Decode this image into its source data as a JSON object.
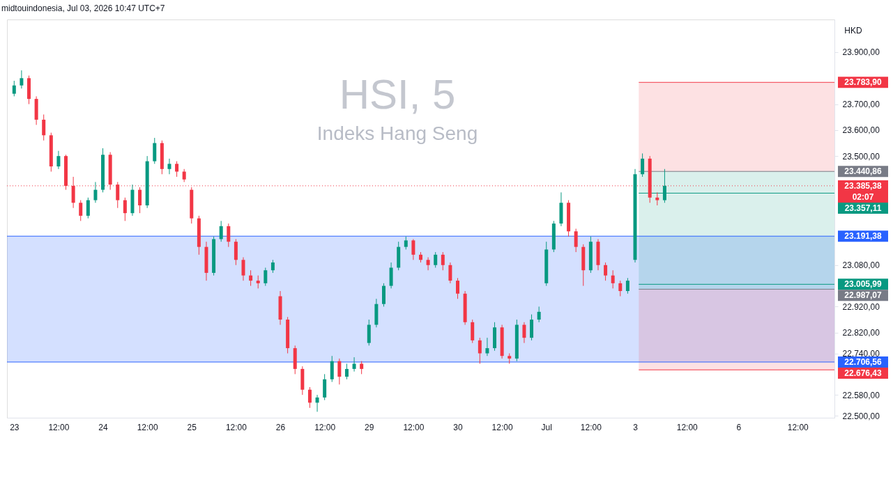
{
  "chart_data": {
    "type": "candlestick",
    "title": "HSI, 5",
    "subtitle": "Indeks Hang Seng",
    "ylabel": "HKD",
    "annotations": [
      "midtouindonesia, Jul 03, 2026 10:47 UTC+7"
    ],
    "categories": [
      "23",
      null,
      null,
      null,
      null,
      null,
      "12:00",
      null,
      null,
      null,
      null,
      null,
      "24",
      null,
      null,
      null,
      null,
      null,
      "12:00",
      null,
      null,
      null,
      null,
      null,
      "25",
      null,
      null,
      null,
      null,
      null,
      "12:00",
      null,
      null,
      null,
      null,
      null,
      "26",
      null,
      null,
      null,
      null,
      null,
      "12:00",
      null,
      null,
      null,
      null,
      null,
      "29",
      null,
      null,
      null,
      null,
      null,
      "12:00",
      null,
      null,
      null,
      null,
      null,
      "30",
      null,
      null,
      null,
      null,
      null,
      "12:00",
      null,
      null,
      null,
      null,
      null,
      "Jul",
      null,
      null,
      null,
      null,
      null,
      "12:00",
      null,
      null,
      null,
      null,
      null,
      "3",
      null,
      null,
      null,
      null,
      null,
      null,
      "12:00",
      null,
      null,
      null,
      null,
      null,
      null,
      "6",
      null,
      null,
      null,
      null,
      null,
      null,
      null,
      "12:00",
      null,
      null,
      null,
      null
    ],
    "ohlc": [
      [
        23740,
        23790,
        23730,
        23772
      ],
      [
        23772,
        23830,
        23760,
        23800
      ],
      [
        23800,
        23810,
        23700,
        23720
      ],
      [
        23720,
        23730,
        23620,
        23640
      ],
      [
        23640,
        23660,
        23560,
        23580
      ],
      [
        23580,
        23590,
        23440,
        23460
      ],
      [
        23460,
        23520,
        23450,
        23500
      ],
      [
        23500,
        23505,
        23370,
        23385
      ],
      [
        23385,
        23420,
        23300,
        23320
      ],
      [
        23320,
        23330,
        23250,
        23270
      ],
      [
        23270,
        23340,
        23260,
        23330
      ],
      [
        23330,
        23400,
        23320,
        23370
      ],
      [
        23370,
        23530,
        23360,
        23505
      ],
      [
        23505,
        23515,
        23370,
        23390
      ],
      [
        23390,
        23400,
        23300,
        23330
      ],
      [
        23330,
        23340,
        23250,
        23280
      ],
      [
        23280,
        23390,
        23270,
        23370
      ],
      [
        23370,
        23380,
        23280,
        23310
      ],
      [
        23310,
        23500,
        23300,
        23480
      ],
      [
        23480,
        23570,
        23470,
        23550
      ],
      [
        23550,
        23560,
        23430,
        23450
      ],
      [
        23450,
        23490,
        23430,
        23470
      ],
      [
        23470,
        23480,
        23420,
        23440
      ],
      [
        23440,
        23450,
        23400,
        23410
      ],
      [
        23370,
        23380,
        23240,
        23260
      ],
      [
        23260,
        23270,
        23120,
        23150
      ],
      [
        23150,
        23170,
        23020,
        23050
      ],
      [
        23050,
        23190,
        23040,
        23180
      ],
      [
        23180,
        23250,
        23170,
        23230
      ],
      [
        23230,
        23240,
        23150,
        23170
      ],
      [
        23170,
        23180,
        23080,
        23100
      ],
      [
        23100,
        23110,
        23020,
        23040
      ],
      [
        23040,
        23060,
        23000,
        23020
      ],
      [
        23020,
        23040,
        22990,
        23010
      ],
      [
        23010,
        23070,
        23000,
        23060
      ],
      [
        23060,
        23100,
        23050,
        23090
      ],
      [
        22960,
        22980,
        22850,
        22870
      ],
      [
        22870,
        22880,
        22740,
        22760
      ],
      [
        22760,
        22770,
        22660,
        22680
      ],
      [
        22680,
        22690,
        22580,
        22600
      ],
      [
        22600,
        22610,
        22530,
        22550
      ],
      [
        22550,
        22580,
        22515,
        22570
      ],
      [
        22570,
        22660,
        22560,
        22640
      ],
      [
        22640,
        22730,
        22630,
        22710
      ],
      [
        22710,
        22720,
        22620,
        22650
      ],
      [
        22650,
        22700,
        22640,
        22680
      ],
      [
        22680,
        22725,
        22670,
        22700
      ],
      [
        22700,
        22710,
        22660,
        22680
      ],
      [
        22780,
        22870,
        22770,
        22850
      ],
      [
        22850,
        22950,
        22840,
        22930
      ],
      [
        22930,
        23010,
        22920,
        23000
      ],
      [
        23000,
        23090,
        22990,
        23070
      ],
      [
        23070,
        23170,
        23060,
        23150
      ],
      [
        23150,
        23190,
        23140,
        23175
      ],
      [
        23175,
        23180,
        23100,
        23120
      ],
      [
        23120,
        23130,
        23090,
        23100
      ],
      [
        23100,
        23110,
        23060,
        23080
      ],
      [
        23080,
        23130,
        23070,
        23120
      ],
      [
        23120,
        23130,
        23060,
        23080
      ],
      [
        23080,
        23090,
        23010,
        23020
      ],
      [
        23020,
        23030,
        22950,
        22970
      ],
      [
        22970,
        22980,
        22850,
        22860
      ],
      [
        22860,
        22870,
        22780,
        22790
      ],
      [
        22790,
        22800,
        22700,
        22740
      ],
      [
        22740,
        22800,
        22730,
        22760
      ],
      [
        22760,
        22860,
        22750,
        22840
      ],
      [
        22840,
        22850,
        22720,
        22730
      ],
      [
        22730,
        22740,
        22700,
        22720
      ],
      [
        22720,
        22870,
        22710,
        22850
      ],
      [
        22850,
        22860,
        22780,
        22800
      ],
      [
        22800,
        22890,
        22790,
        22870
      ],
      [
        22870,
        22920,
        22860,
        22900
      ],
      [
        23010,
        23170,
        23000,
        23140
      ],
      [
        23140,
        23250,
        23130,
        23240
      ],
      [
        23240,
        23360,
        23230,
        23320
      ],
      [
        23320,
        23330,
        23190,
        23210
      ],
      [
        23210,
        23220,
        23130,
        23150
      ],
      [
        23150,
        23160,
        23000,
        23060
      ],
      [
        23060,
        23190,
        23050,
        23170
      ],
      [
        23170,
        23180,
        23060,
        23080
      ],
      [
        23080,
        23090,
        23020,
        23040
      ],
      [
        23040,
        23060,
        22990,
        23010
      ],
      [
        23010,
        23020,
        22960,
        22980
      ],
      [
        22980,
        23030,
        22970,
        23020
      ],
      [
        23100,
        23450,
        23090,
        23430
      ],
      [
        23430,
        23510,
        23420,
        23490
      ],
      [
        23490,
        23500,
        23320,
        23340
      ],
      [
        23340,
        23360,
        23310,
        23330
      ],
      [
        23330,
        23450,
        23320,
        23385.38
      ],
      null,
      null,
      null,
      null,
      null,
      null,
      null,
      null,
      null,
      null,
      null,
      null,
      null,
      null,
      null,
      null,
      null,
      null,
      null,
      null,
      null,
      null
    ],
    "ylim": [
      22492,
      24026
    ],
    "yticks": [
      {
        "value": 22500,
        "label": "22.500,00"
      },
      {
        "value": 22580,
        "label": "22.580,00"
      },
      {
        "value": 22740,
        "label": "22.740,00"
      },
      {
        "value": 22820,
        "label": "22.820,00"
      },
      {
        "value": 22920,
        "label": "22.920,00"
      },
      {
        "value": 23080,
        "label": "23.080,00"
      },
      {
        "value": 23500,
        "label": "23.500,00"
      },
      {
        "value": 23600,
        "label": "23.600,00"
      },
      {
        "value": 23700,
        "label": "23.700,00"
      },
      {
        "value": 23900,
        "label": "23.900,00"
      }
    ],
    "bands": [
      {
        "axis": "y",
        "from": 22706.56,
        "to": 23191.38,
        "color": "#2962ff"
      },
      {
        "axis": "y",
        "from": 23440.86,
        "to": 23783.9,
        "color": "#f23645"
      },
      {
        "axis": "y",
        "from": 22987.07,
        "to": 23440.86,
        "color": "#089981"
      },
      {
        "axis": "y",
        "from": 22676.43,
        "to": 22987.07,
        "color": "#f23645"
      }
    ],
    "ref_lines": [
      {
        "axis": "y",
        "value": 23783.9,
        "label": "23.783,90",
        "color": "#f23645"
      },
      {
        "axis": "y",
        "value": 23440.86,
        "label": "23.440,86",
        "color": "#787b86"
      },
      {
        "axis": "y",
        "value": 23385.38,
        "label": "23.385,38\n02:07",
        "color": "#f23645",
        "line_style": "dotted"
      },
      {
        "axis": "y",
        "value": 23357.11,
        "label": "23.357,11",
        "color": "#089981"
      },
      {
        "axis": "y",
        "value": 23191.38,
        "label": "23.191,38",
        "color": "#2962ff",
        "line_style": "solid"
      },
      {
        "axis": "y",
        "value": 23005.99,
        "label": "23.005,99",
        "color": "#089981"
      },
      {
        "axis": "y",
        "value": 22987.07,
        "label": "22.987,07",
        "color": "#787b86"
      },
      {
        "axis": "y",
        "value": 22706.56,
        "label": "22.706,56",
        "color": "#2962ff",
        "line_style": "solid"
      },
      {
        "axis": "y",
        "value": 22676.43,
        "label": "22.676,43",
        "color": "#f23645"
      }
    ],
    "grid": false,
    "legend": false
  }
}
